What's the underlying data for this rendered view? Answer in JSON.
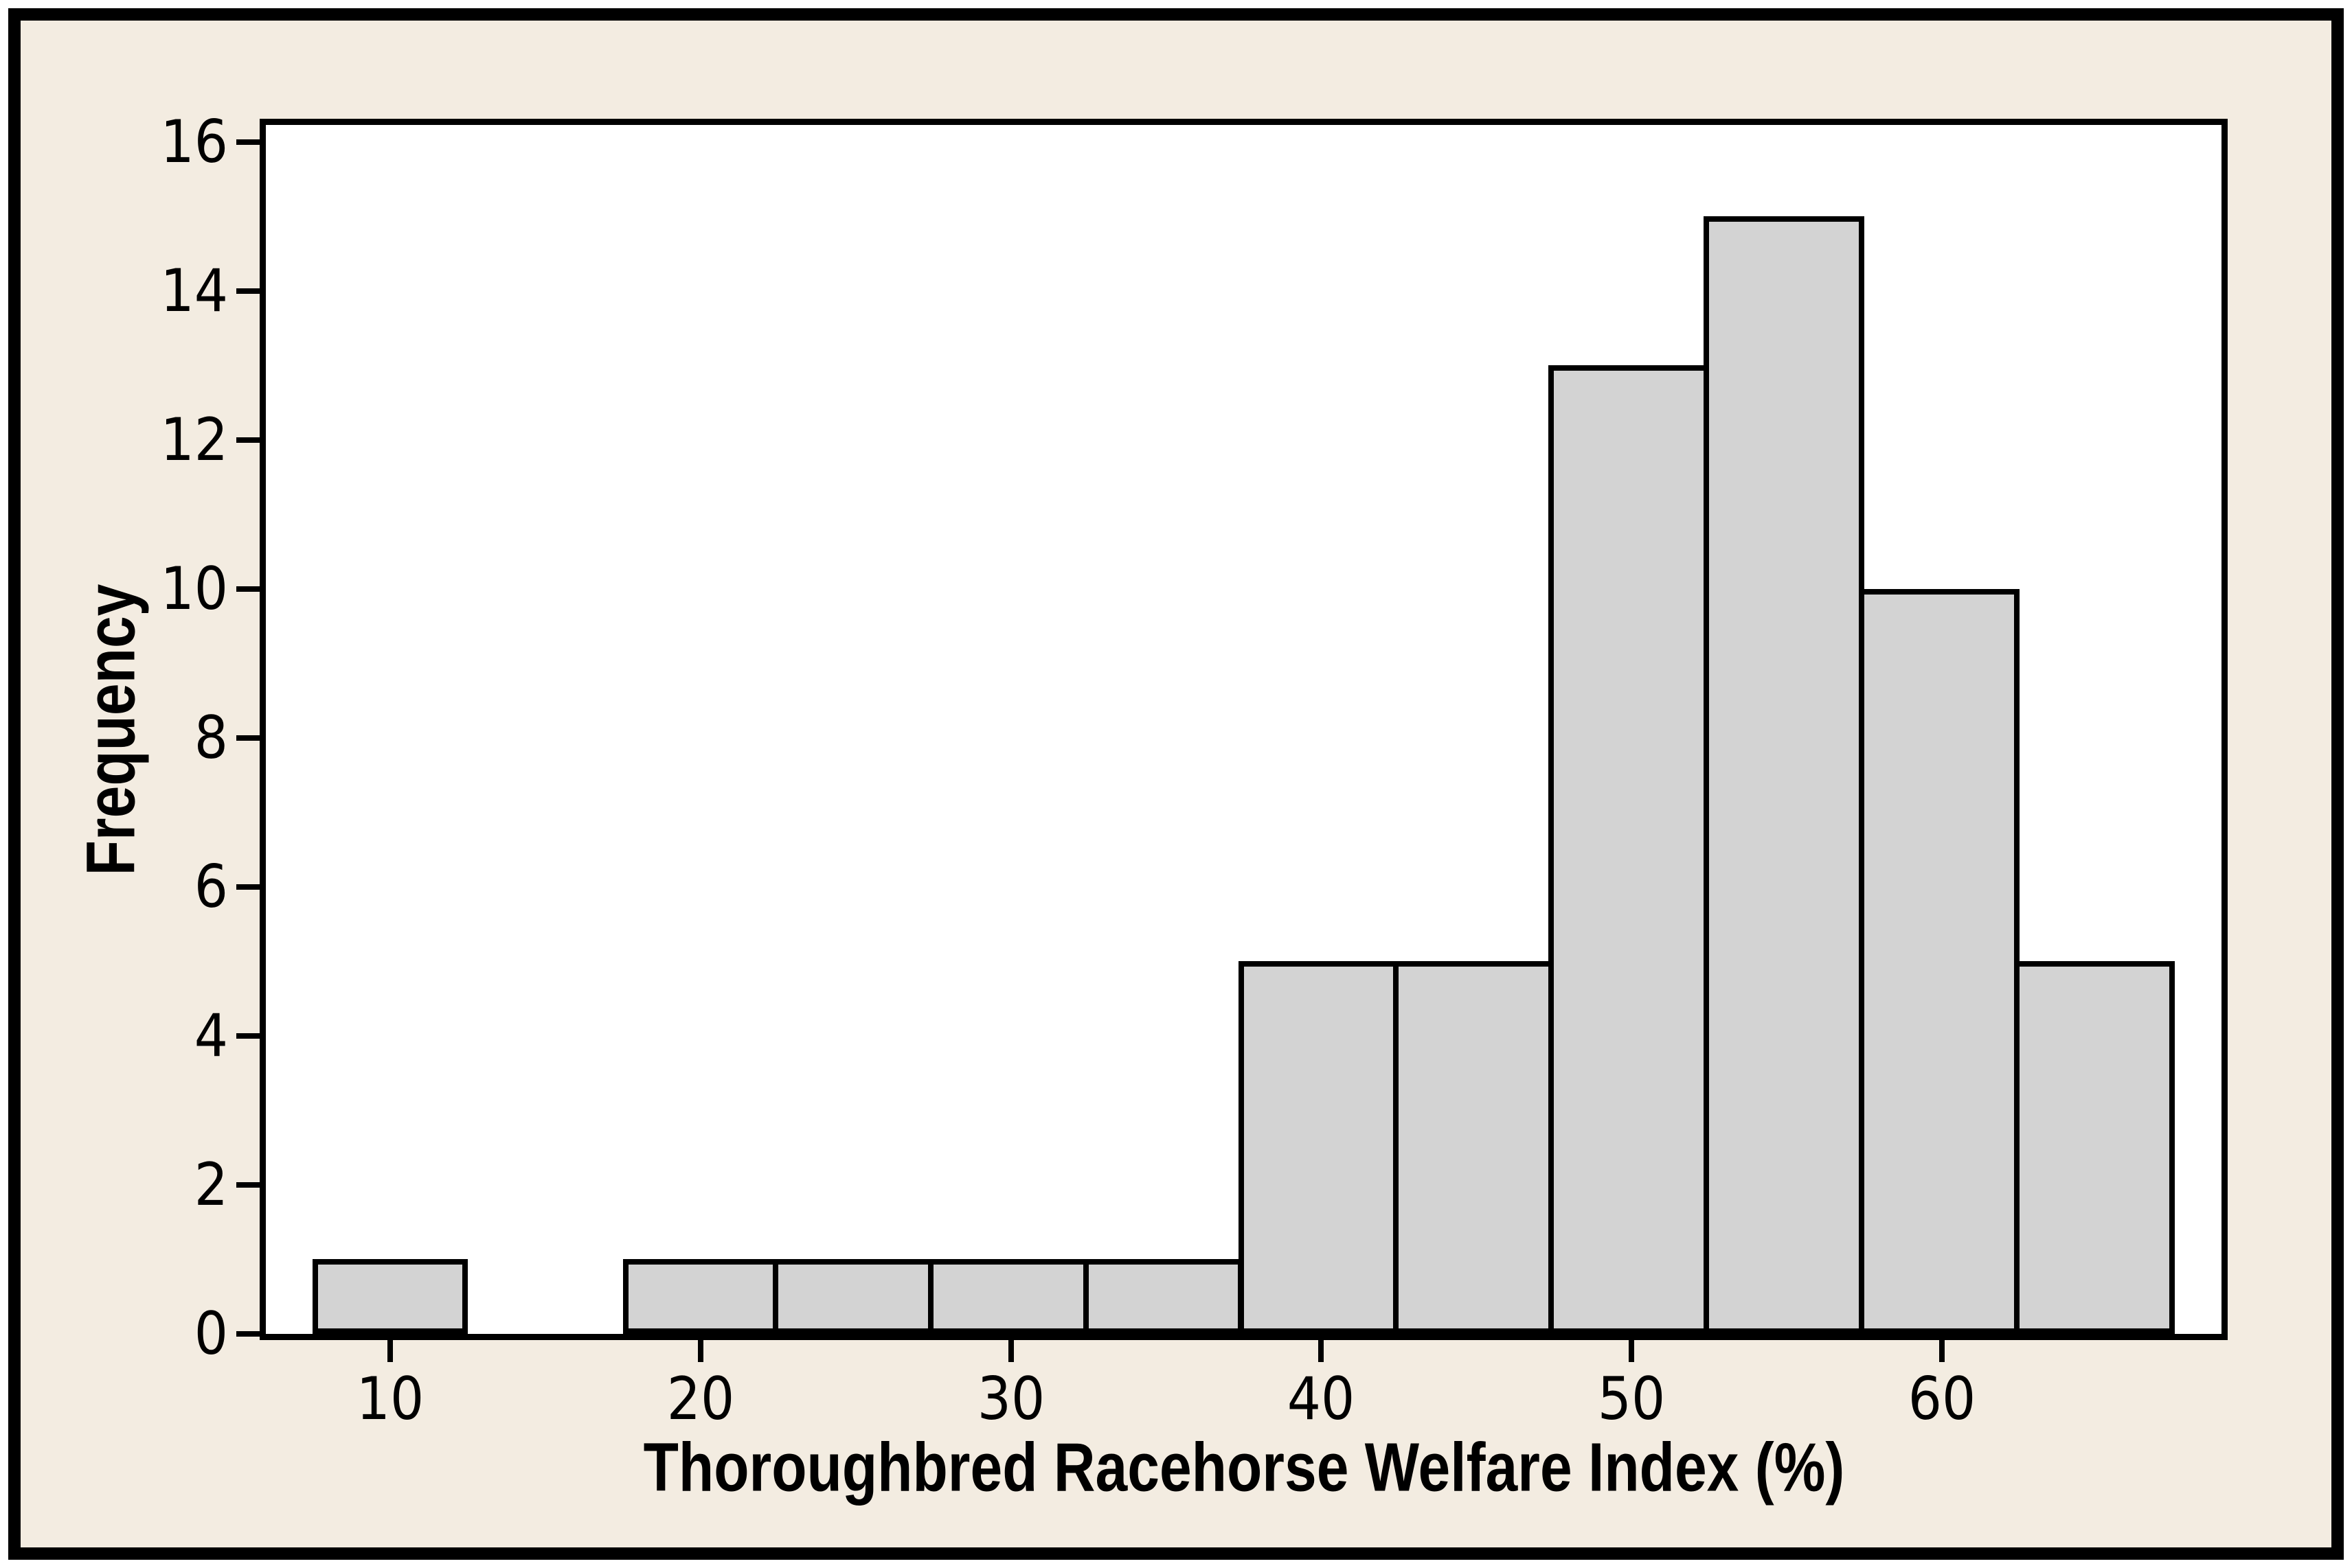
{
  "figure": {
    "background_color": "#F3ECE1",
    "plot_background_color": "#FFFFFF",
    "frame_color": "#000000"
  },
  "chart_data": {
    "type": "bar",
    "subtype": "histogram",
    "title": "",
    "xlabel": "Thoroughbred Racehorse Welfare Index (%)",
    "ylabel": "Frequency",
    "bin_width": 5,
    "bins": [
      {
        "start": 7.5,
        "end": 12.5,
        "frequency": 1
      },
      {
        "start": 17.5,
        "end": 22.5,
        "frequency": 1
      },
      {
        "start": 22.5,
        "end": 27.5,
        "frequency": 1
      },
      {
        "start": 27.5,
        "end": 32.5,
        "frequency": 1
      },
      {
        "start": 32.5,
        "end": 37.5,
        "frequency": 1
      },
      {
        "start": 37.5,
        "end": 42.5,
        "frequency": 5
      },
      {
        "start": 42.5,
        "end": 47.5,
        "frequency": 5
      },
      {
        "start": 47.5,
        "end": 52.5,
        "frequency": 13
      },
      {
        "start": 52.5,
        "end": 57.5,
        "frequency": 15
      },
      {
        "start": 57.5,
        "end": 62.5,
        "frequency": 10
      },
      {
        "start": 62.5,
        "end": 67.5,
        "frequency": 5
      }
    ],
    "x_ticks": [
      10,
      20,
      30,
      40,
      50,
      60
    ],
    "y_ticks": [
      0,
      2,
      4,
      6,
      8,
      10,
      12,
      14,
      16
    ],
    "xlim": [
      6,
      69
    ],
    "ylim": [
      0,
      16.23
    ],
    "bar_fill": "#D3D3D3",
    "bar_edge": "#000000",
    "grid": false,
    "legend": null
  }
}
